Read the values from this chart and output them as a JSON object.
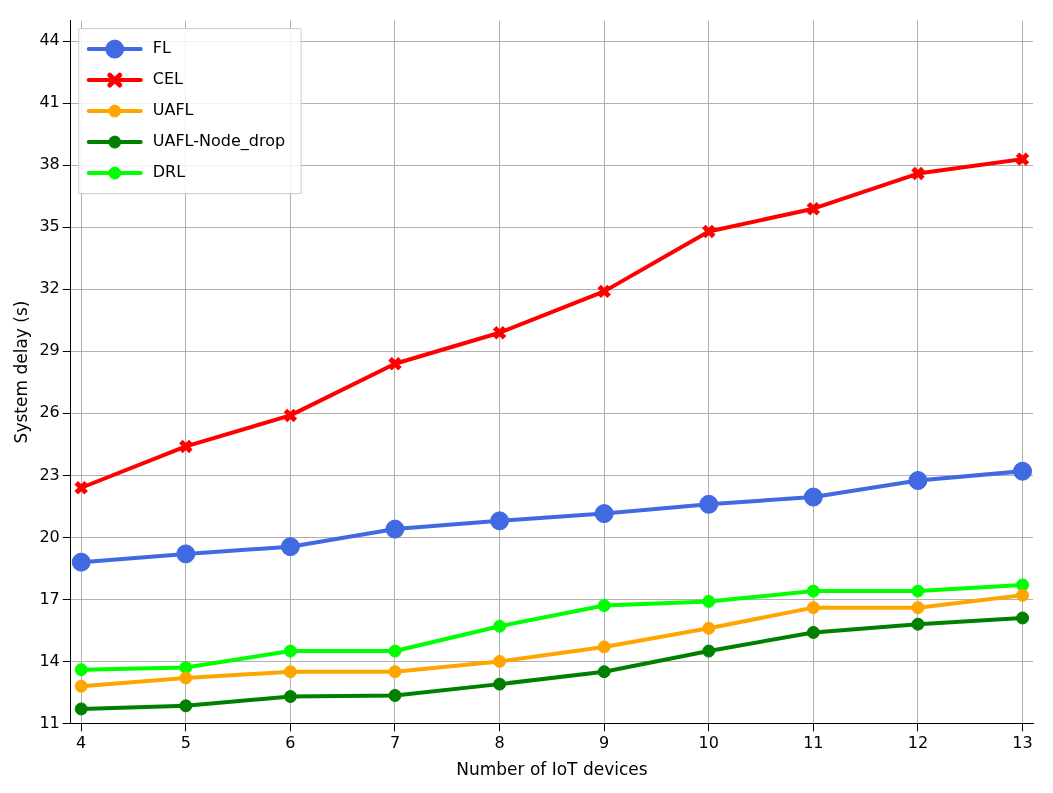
{
  "chart_data": {
    "type": "line",
    "xlabel": "Number of IoT devices",
    "ylabel": "System delay (s)",
    "x": [
      4,
      5,
      6,
      7,
      8,
      9,
      10,
      11,
      12,
      13
    ],
    "xlim": [
      3.9,
      13.1
    ],
    "xticks": [
      4,
      5,
      6,
      7,
      8,
      9,
      10,
      11,
      12,
      13
    ],
    "ylim": [
      11,
      45
    ],
    "yticks": [
      11,
      14,
      17,
      20,
      23,
      26,
      29,
      32,
      35,
      38,
      41,
      44
    ],
    "grid": true,
    "legend": "top left",
    "line_style": "solid",
    "series": [
      {
        "name": "FL",
        "color": "#4169e1",
        "marker": "circle",
        "values": [
          18.8,
          19.2,
          19.55,
          20.4,
          20.8,
          21.15,
          21.6,
          21.95,
          22.75,
          23.2
        ]
      },
      {
        "name": "CEL",
        "color": "#ff0000",
        "marker": "cross",
        "values": [
          22.4,
          24.4,
          25.9,
          28.4,
          29.9,
          31.9,
          34.8,
          35.9,
          37.6,
          38.3
        ]
      },
      {
        "name": "UAFL",
        "color": "#ffa500",
        "marker": "circle",
        "values": [
          12.8,
          13.2,
          13.5,
          13.5,
          14.0,
          14.7,
          15.6,
          16.6,
          16.6,
          17.2
        ]
      },
      {
        "name": "UAFL-Node_drop",
        "color": "#008000",
        "marker": "circle",
        "values": [
          11.7,
          11.85,
          12.3,
          12.35,
          12.9,
          13.5,
          14.5,
          15.4,
          15.8,
          16.1
        ]
      },
      {
        "name": "DRL",
        "color": "#00ff00",
        "marker": "circle",
        "values": [
          13.6,
          13.7,
          14.5,
          14.5,
          15.7,
          16.7,
          16.9,
          17.4,
          17.4,
          17.7
        ]
      }
    ]
  }
}
